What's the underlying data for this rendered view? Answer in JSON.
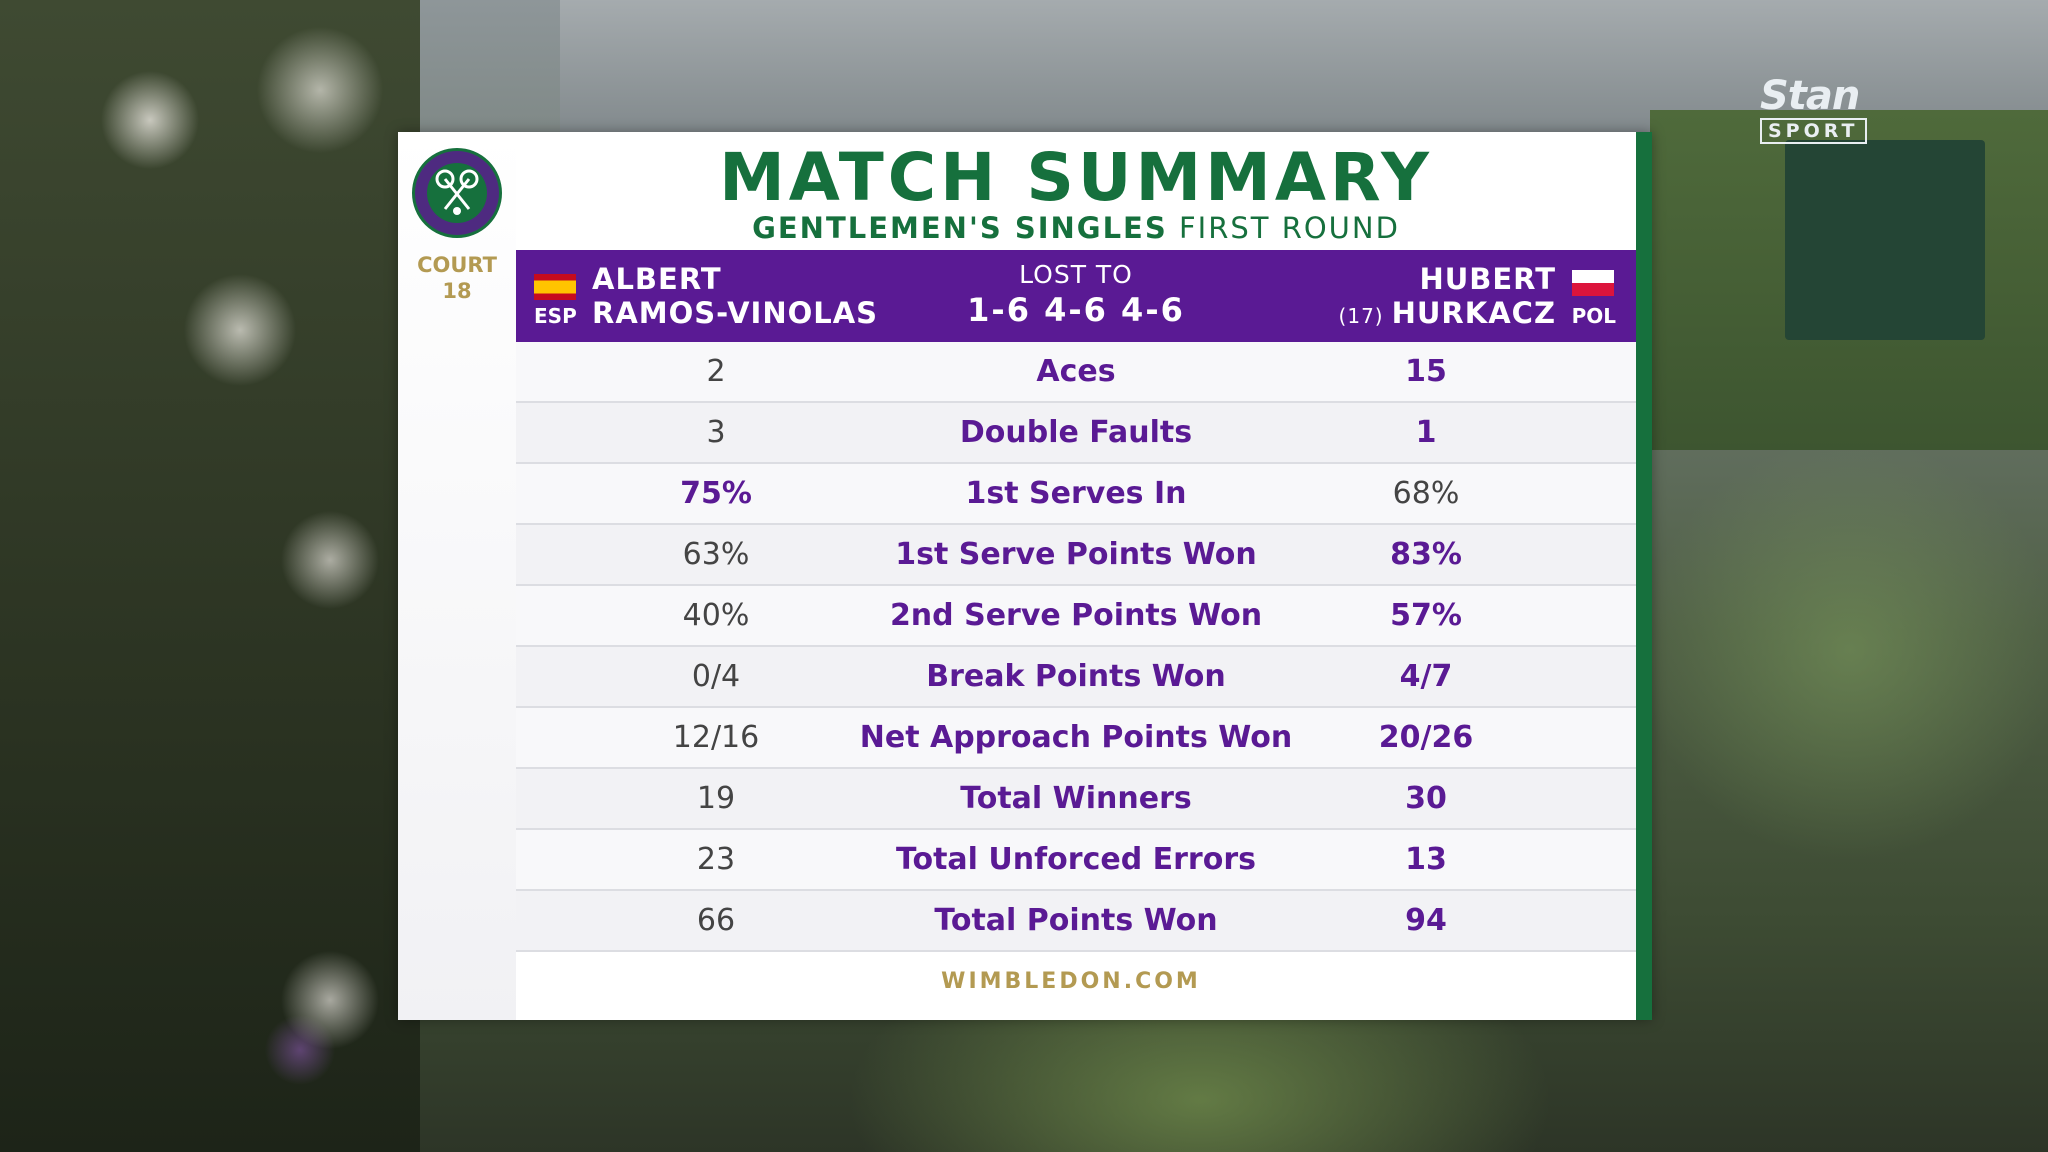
{
  "broadcaster": {
    "name": "Stan",
    "sub": "SPORT"
  },
  "header": {
    "title": "MATCH SUMMARY",
    "subtitle_bold": "GENTLEMEN'S SINGLES",
    "subtitle_rest": "FIRST ROUND",
    "court_label": "COURT",
    "court_number": "18",
    "logo_icon": "wimbledon-logo-icon"
  },
  "players": {
    "left": {
      "first": "ALBERT",
      "last": "RAMOS-VINOLAS",
      "code": "ESP"
    },
    "right": {
      "first": "HUBERT",
      "last": "HURKACZ",
      "seed": "(17)",
      "code": "POL"
    },
    "result_label": "LOST TO",
    "score": "1-6 4-6 4-6"
  },
  "stats": [
    {
      "label": "Aces",
      "left": "2",
      "right": "15",
      "winner": "right"
    },
    {
      "label": "Double Faults",
      "left": "3",
      "right": "1",
      "winner": "right"
    },
    {
      "label": "1st Serves In",
      "left": "75%",
      "right": "68%",
      "winner": "left"
    },
    {
      "label": "1st Serve Points Won",
      "left": "63%",
      "right": "83%",
      "winner": "right"
    },
    {
      "label": "2nd Serve Points Won",
      "left": "40%",
      "right": "57%",
      "winner": "right"
    },
    {
      "label": "Break Points Won",
      "left": "0/4",
      "right": "4/7",
      "winner": "right"
    },
    {
      "label": "Net Approach Points Won",
      "left": "12/16",
      "right": "20/26",
      "winner": "right"
    },
    {
      "label": "Total Winners",
      "left": "19",
      "right": "30",
      "winner": "right"
    },
    {
      "label": "Total Unforced Errors",
      "left": "23",
      "right": "13",
      "winner": "right"
    },
    {
      "label": "Total Points Won",
      "left": "66",
      "right": "94",
      "winner": "right"
    }
  ],
  "footer": "WIMBLEDON.COM",
  "colors": {
    "purple": "#5a1a94",
    "green": "#16703d",
    "gold": "#b39a52"
  }
}
